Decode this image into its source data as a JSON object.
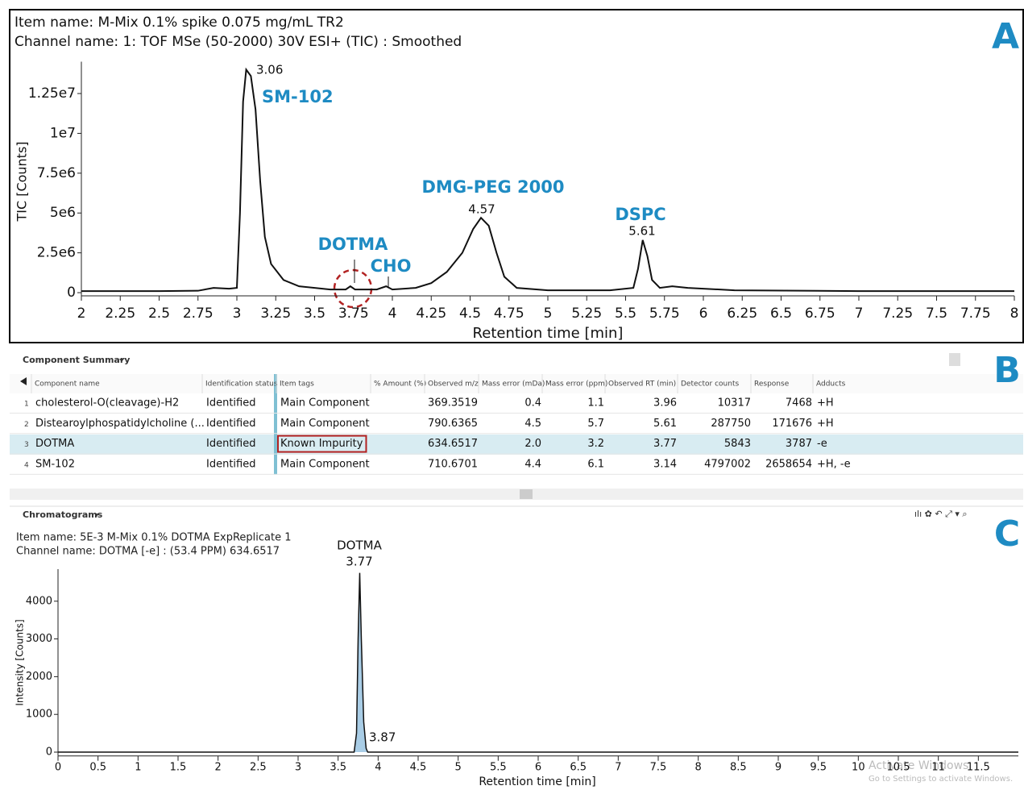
{
  "chart_data": [
    {
      "type": "line",
      "letter": "A",
      "item_name": "Item name: M-Mix 0.1% spike 0.075 mg/mL TR2",
      "channel_name": "Channel name: 1: TOF MSe (50-2000) 30V ESI+ (TIC) : Smoothed",
      "x_label": "Retention time [min]",
      "y_label": "TIC [Counts]",
      "xlim": [
        2,
        8
      ],
      "ylim": [
        -200000,
        14500000
      ],
      "xticks": [
        2,
        2.25,
        2.5,
        2.75,
        3,
        3.25,
        3.5,
        3.75,
        4,
        4.25,
        4.5,
        4.75,
        5,
        5.25,
        5.5,
        5.75,
        6,
        6.25,
        6.5,
        6.75,
        7,
        7.25,
        7.5,
        7.75,
        8
      ],
      "yticks": [
        0,
        {
          "value": 2500000,
          "label": "2.5e6"
        },
        {
          "value": 5000000,
          "label": "5e6"
        },
        {
          "value": 7500000,
          "label": "7.5e6"
        },
        {
          "value": 10000000,
          "label": "1e7"
        },
        {
          "value": 12500000,
          "label": "1.25e7"
        }
      ],
      "series": [
        {
          "color": "#111111",
          "x": [
            2.0,
            2.5,
            2.75,
            2.85,
            2.95,
            3.0,
            3.02,
            3.04,
            3.06,
            3.09,
            3.12,
            3.15,
            3.18,
            3.22,
            3.3,
            3.4,
            3.6,
            3.7,
            3.73,
            3.76,
            3.9,
            3.96,
            4.0,
            4.15,
            4.25,
            4.35,
            4.45,
            4.52,
            4.57,
            4.62,
            4.67,
            4.72,
            4.8,
            5.0,
            5.4,
            5.55,
            5.58,
            5.61,
            5.64,
            5.67,
            5.72,
            5.8,
            5.9,
            6.2,
            7.0,
            8.0
          ],
          "values": [
            100000,
            100000,
            120000,
            300000,
            250000,
            300000,
            5000000,
            12000000,
            14000000,
            13600000,
            11500000,
            7000000,
            3500000,
            1800000,
            800000,
            400000,
            200000,
            200000,
            400000,
            200000,
            200000,
            400000,
            200000,
            300000,
            600000,
            1300000,
            2500000,
            4000000,
            4700000,
            4200000,
            2500000,
            1000000,
            300000,
            150000,
            150000,
            300000,
            1500000,
            3300000,
            2300000,
            800000,
            300000,
            400000,
            300000,
            150000,
            100000,
            100000
          ]
        }
      ],
      "annotations": [
        "3.06",
        "SM-102",
        "DMG-PEG 2000",
        "4.57",
        "DSPC",
        "5.61",
        "DOTMA",
        "CHO"
      ]
    },
    {
      "type": "area",
      "letter": "C",
      "panel_title": "Chromatograms",
      "item_name": "Item name: 5E-3 M-Mix 0.1% DOTMA ExpReplicate 1",
      "channel_name": "Channel name: DOTMA [-e] : (53.4 PPM) 634.6517",
      "x_label": "Retention time [min]",
      "y_label": "Intensity [Counts]",
      "xlim": [
        0,
        12
      ],
      "ylim": [
        -100,
        4850
      ],
      "xticks": [
        0,
        0.5,
        1,
        1.5,
        2,
        2.5,
        3,
        3.5,
        4,
        4.5,
        5,
        5.5,
        6,
        6.5,
        7,
        7.5,
        8,
        8.5,
        9,
        9.5,
        10,
        10.5,
        11,
        11.5
      ],
      "yticks": [
        0,
        1000,
        2000,
        3000,
        4000
      ],
      "series": [
        {
          "color": "#111111",
          "fill": "#a9cde6",
          "x": [
            0,
            3.7,
            3.73,
            3.75,
            3.77,
            3.79,
            3.82,
            3.85,
            3.87,
            12
          ],
          "values": [
            0,
            0,
            500,
            3000,
            4750,
            3000,
            800,
            100,
            0,
            0
          ]
        }
      ],
      "annotations": [
        "DOTMA",
        "3.77",
        "3.87"
      ]
    }
  ],
  "summary": {
    "letter": "B",
    "title": "Component Summary",
    "columns": [
      "Component name",
      "Identification status",
      "Item tags",
      "% Amount (%)",
      "Observed m/z",
      "Mass error (mDa)",
      "Mass error (ppm)",
      "Observed RT (min)",
      "Detector counts",
      "Response",
      "Adducts"
    ],
    "rows": [
      [
        1,
        "cholesterol-O(cleavage)-H2",
        "Identified",
        "Main Component",
        "369.3519",
        "0.4",
        "1.1",
        "3.96",
        "10317",
        "7468",
        "+H"
      ],
      [
        2,
        "Distearoylphospatidylcholine (...",
        "Identified",
        "Main Component",
        "790.6365",
        "4.5",
        "5.7",
        "5.61",
        "287750",
        "171676",
        "+H"
      ],
      [
        3,
        "DOTMA",
        "Identified",
        "Known Impurity",
        "634.6517",
        "2.0",
        "3.2",
        "3.77",
        "5843",
        "3787",
        "-e"
      ],
      [
        4,
        "SM-102",
        "Identified",
        "Main Component",
        "710.6701",
        "4.4",
        "6.1",
        "3.14",
        "4797002",
        "2658654",
        "+H, -e"
      ]
    ]
  },
  "watermark": [
    "Activate Windows",
    "Go to Settings to activate Windows."
  ]
}
